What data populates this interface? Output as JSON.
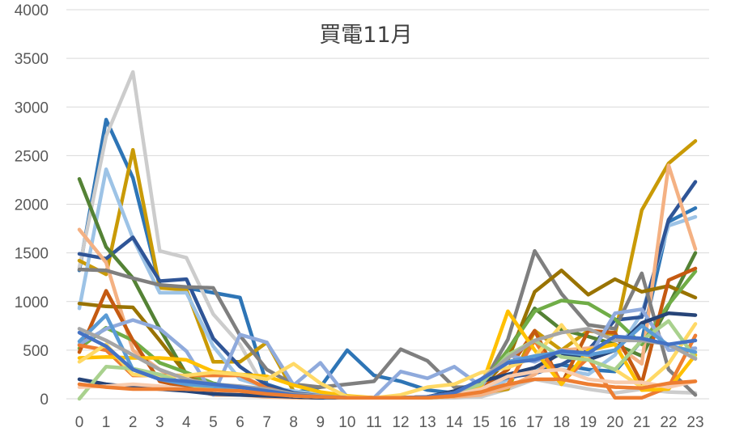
{
  "chart_data": {
    "type": "line",
    "title": "買電11月",
    "xlabel": "",
    "ylabel": "",
    "ylim": [
      0,
      4000
    ],
    "yticks": [
      0,
      500,
      1000,
      1500,
      2000,
      2500,
      3000,
      3500,
      4000
    ],
    "grid": true,
    "legend": "none",
    "x": [
      0,
      1,
      2,
      3,
      4,
      5,
      6,
      7,
      8,
      9,
      10,
      11,
      12,
      13,
      14,
      15,
      16,
      17,
      18,
      19,
      20,
      21,
      22,
      23
    ],
    "series": [
      {
        "color": "#2e75b6",
        "values": [
          1320,
          2870,
          2270,
          1170,
          1140,
          1090,
          1040,
          150,
          60,
          120,
          500,
          240,
          180,
          90,
          60,
          130,
          200,
          300,
          350,
          300,
          280,
          600,
          1820,
          1960
        ]
      },
      {
        "color": "#cccccc",
        "values": [
          1350,
          2700,
          3360,
          1520,
          1450,
          870,
          560,
          70,
          30,
          20,
          10,
          10,
          10,
          10,
          10,
          20,
          100,
          200,
          150,
          100,
          60,
          100,
          70,
          60
        ]
      },
      {
        "color": "#c99a06",
        "values": [
          1420,
          1280,
          2560,
          1140,
          1120,
          380,
          380,
          580,
          80,
          40,
          20,
          10,
          10,
          20,
          30,
          60,
          100,
          700,
          500,
          700,
          660,
          1940,
          2420,
          2650
        ]
      },
      {
        "color": "#9dc3e6",
        "values": [
          930,
          2360,
          1650,
          1090,
          1090,
          540,
          200,
          120,
          80,
          40,
          20,
          10,
          10,
          10,
          20,
          60,
          200,
          300,
          300,
          250,
          450,
          880,
          1780,
          1870
        ]
      },
      {
        "color": "#2f5597",
        "values": [
          1490,
          1440,
          1660,
          1210,
          1230,
          620,
          330,
          140,
          60,
          30,
          20,
          10,
          10,
          20,
          50,
          130,
          220,
          260,
          350,
          500,
          810,
          840,
          1840,
          2230
        ]
      },
      {
        "color": "#548235",
        "values": [
          2260,
          1560,
          1240,
          720,
          250,
          150,
          110,
          60,
          30,
          20,
          10,
          10,
          10,
          10,
          30,
          150,
          500,
          930,
          710,
          640,
          560,
          440,
          960,
          1500
        ]
      },
      {
        "color": "#f4b183",
        "values": [
          1740,
          1400,
          500,
          300,
          120,
          40,
          40,
          20,
          10,
          10,
          10,
          10,
          10,
          10,
          20,
          40,
          120,
          250,
          500,
          520,
          560,
          360,
          2400,
          1540
        ]
      },
      {
        "color": "#7f7f7f",
        "values": [
          1330,
          1320,
          1240,
          1170,
          1150,
          1140,
          650,
          300,
          150,
          120,
          150,
          180,
          510,
          390,
          120,
          120,
          610,
          1520,
          1080,
          760,
          720,
          1290,
          300,
          40
        ]
      },
      {
        "color": "#997300",
        "values": [
          980,
          950,
          940,
          600,
          250,
          150,
          100,
          60,
          20,
          10,
          10,
          10,
          10,
          20,
          50,
          120,
          400,
          1100,
          1320,
          1070,
          1230,
          1100,
          1160,
          1040
        ]
      },
      {
        "color": "#70ad47",
        "values": [
          520,
          730,
          600,
          370,
          270,
          160,
          110,
          60,
          30,
          20,
          10,
          10,
          10,
          10,
          30,
          140,
          500,
          900,
          1010,
          980,
          820,
          560,
          970,
          1310
        ]
      },
      {
        "color": "#c55a11",
        "values": [
          480,
          1110,
          600,
          180,
          120,
          100,
          90,
          40,
          20,
          10,
          10,
          10,
          10,
          20,
          40,
          120,
          300,
          700,
          150,
          700,
          680,
          160,
          1220,
          1340
        ]
      },
      {
        "color": "#8faadc",
        "values": [
          560,
          720,
          810,
          720,
          490,
          40,
          660,
          580,
          140,
          370,
          20,
          10,
          280,
          210,
          330,
          130,
          450,
          380,
          500,
          410,
          880,
          920,
          500,
          520
        ]
      },
      {
        "color": "#264478",
        "values": [
          200,
          150,
          120,
          100,
          80,
          50,
          40,
          30,
          20,
          10,
          10,
          10,
          10,
          20,
          80,
          180,
          250,
          320,
          470,
          400,
          500,
          780,
          880,
          860
        ]
      },
      {
        "color": "#ed7d31",
        "values": [
          550,
          500,
          240,
          240,
          240,
          240,
          240,
          110,
          40,
          20,
          10,
          10,
          10,
          20,
          40,
          80,
          150,
          600,
          170,
          420,
          10,
          10,
          120,
          650
        ]
      },
      {
        "color": "#ffc000",
        "values": [
          420,
          430,
          420,
          420,
          400,
          280,
          250,
          230,
          140,
          70,
          30,
          10,
          10,
          10,
          30,
          120,
          900,
          500,
          150,
          500,
          560,
          90,
          100,
          450
        ]
      },
      {
        "color": "#ffd966",
        "values": [
          380,
          560,
          250,
          230,
          240,
          270,
          250,
          200,
          360,
          160,
          20,
          10,
          40,
          120,
          150,
          270,
          320,
          430,
          760,
          400,
          300,
          120,
          360,
          770
        ]
      },
      {
        "color": "#a9d18e",
        "values": [
          0,
          330,
          310,
          250,
          150,
          100,
          80,
          60,
          30,
          20,
          10,
          10,
          10,
          20,
          60,
          150,
          450,
          600,
          430,
          400,
          300,
          600,
          800,
          420
        ]
      },
      {
        "color": "#5b9bd5",
        "values": [
          590,
          860,
          300,
          200,
          150,
          130,
          80,
          60,
          30,
          20,
          10,
          10,
          10,
          20,
          50,
          200,
          380,
          440,
          480,
          450,
          500,
          750,
          550,
          480
        ]
      },
      {
        "color": "#f8cbad",
        "values": [
          120,
          130,
          150,
          130,
          100,
          90,
          80,
          60,
          30,
          20,
          10,
          10,
          10,
          20,
          40,
          100,
          230,
          280,
          300,
          200,
          170,
          170,
          120,
          180
        ]
      },
      {
        "color": "#a5a5a5",
        "values": [
          720,
          600,
          450,
          300,
          200,
          150,
          130,
          100,
          50,
          30,
          10,
          10,
          10,
          20,
          50,
          200,
          420,
          600,
          680,
          720,
          600,
          600,
          560,
          410
        ]
      },
      {
        "color": "#4472c4",
        "values": [
          680,
          540,
          300,
          200,
          180,
          150,
          120,
          80,
          40,
          20,
          10,
          10,
          10,
          20,
          60,
          200,
          370,
          400,
          490,
          470,
          640,
          620,
          560,
          600
        ]
      },
      {
        "color": "#ed7d31",
        "values": [
          150,
          120,
          100,
          100,
          100,
          90,
          80,
          50,
          30,
          20,
          10,
          10,
          10,
          10,
          30,
          70,
          150,
          200,
          200,
          150,
          120,
          110,
          160,
          180
        ]
      }
    ]
  }
}
